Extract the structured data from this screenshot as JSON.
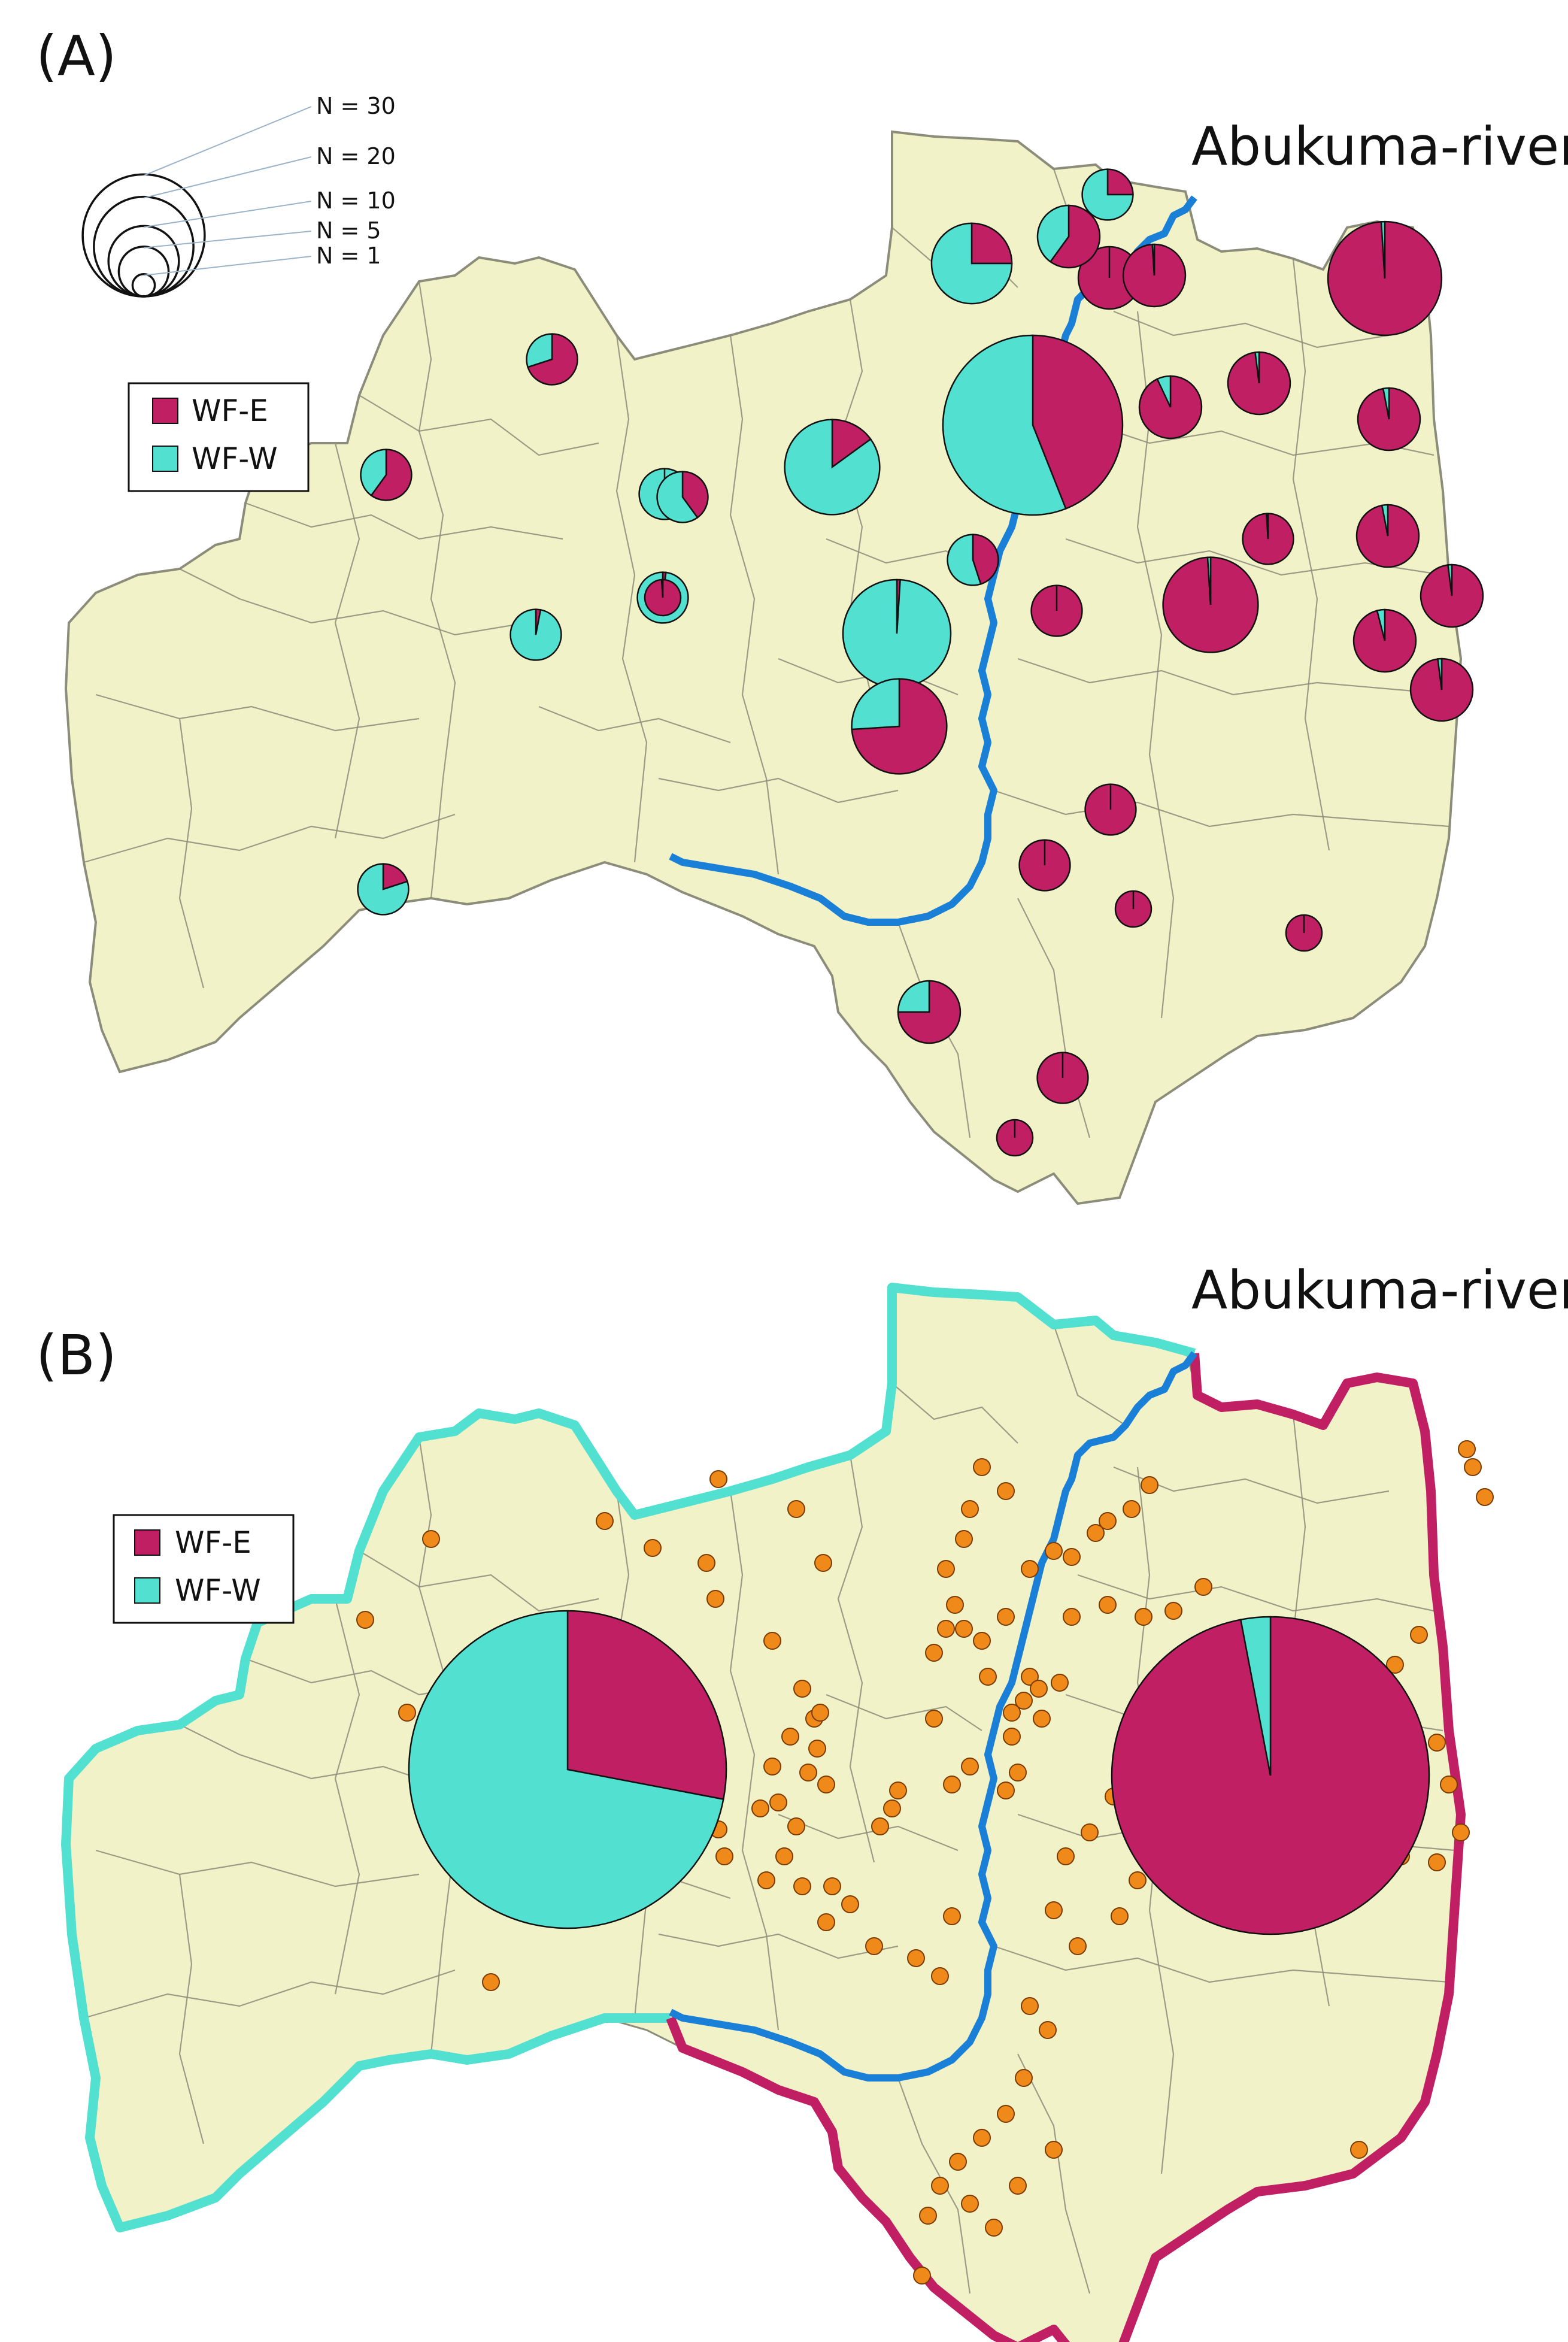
{
  "panels": [
    {
      "id": "A",
      "label": "(A)",
      "river_label": "Abukuma-river"
    },
    {
      "id": "B",
      "label": "(B)",
      "river_label": "Abukuma-river"
    }
  ],
  "legend": {
    "items": [
      {
        "label": "WF-E",
        "color": "#c01f63"
      },
      {
        "label": "WF-W",
        "color": "#52e0d0"
      }
    ]
  },
  "size_scale": {
    "labels": [
      "N = 30",
      "N = 20",
      "N = 10",
      "N = 5",
      "N = 1"
    ],
    "values": [
      30,
      20,
      10,
      5,
      1
    ]
  },
  "colors": {
    "map_fill": "#f2f2c8",
    "boundary": "#8c8c7a",
    "river": "#1a7fd6",
    "west_border": "#52e0d0",
    "east_border": "#c01f63",
    "sample_dot": "#ef8a1a"
  },
  "panel_A_sites": [
    {
      "n": 2,
      "wf_e": 0.7
    },
    {
      "n": 2,
      "wf_e": 0.6
    },
    {
      "n": 5,
      "wf_e": 0.25
    },
    {
      "n": 2,
      "wf_e": 0.0
    },
    {
      "n": 1,
      "wf_e": 1.0
    },
    {
      "n": 3,
      "wf_e": 1.0
    },
    {
      "n": 2,
      "wf_e": 0.2
    },
    {
      "n": 2,
      "wf_e": 0.4
    },
    {
      "n": 7,
      "wf_e": 0.15
    },
    {
      "n": 2,
      "wf_e": 0.45
    },
    {
      "n": 2,
      "wf_e": 0.02
    },
    {
      "n": 2,
      "wf_e": 0.03
    },
    {
      "n": 25,
      "wf_e": 0.44
    },
    {
      "n": 3,
      "wf_e": 0.99
    },
    {
      "n": 3,
      "wf_e": 0.93
    },
    {
      "n": 3,
      "wf_e": 0.98
    },
    {
      "n": 7,
      "wf_e": 0.99
    },
    {
      "n": 3,
      "wf_e": 0.97
    },
    {
      "n": 3,
      "wf_e": 0.97
    },
    {
      "n": 3,
      "wf_e": 0.98
    },
    {
      "n": 3,
      "wf_e": 0.6
    },
    {
      "n": 9,
      "wf_e": 0.01
    },
    {
      "n": 2,
      "wf_e": 1.0
    },
    {
      "n": 10,
      "wf_e": 0.99
    },
    {
      "n": 2,
      "wf_e": 0.99
    },
    {
      "n": 3,
      "wf_e": 0.96
    },
    {
      "n": 3,
      "wf_e": 0.98
    },
    {
      "n": 7,
      "wf_e": 0.74
    },
    {
      "n": 2,
      "wf_e": 1.0
    },
    {
      "n": 2,
      "wf_e": 1.0
    },
    {
      "n": 1,
      "wf_e": 1.0
    },
    {
      "n": 1,
      "wf_e": 1.0
    },
    {
      "n": 3,
      "wf_e": 0.75
    },
    {
      "n": 2,
      "wf_e": 1.0
    },
    {
      "n": 1,
      "wf_e": 1.0
    },
    {
      "n": 2,
      "wf_e": 0.25
    },
    {
      "n": 1,
      "wf_e": 0.99
    }
  ],
  "panel_B_summary": [
    {
      "region": "west",
      "wf_e": 0.28
    },
    {
      "region": "east",
      "wf_e": 0.97
    }
  ]
}
